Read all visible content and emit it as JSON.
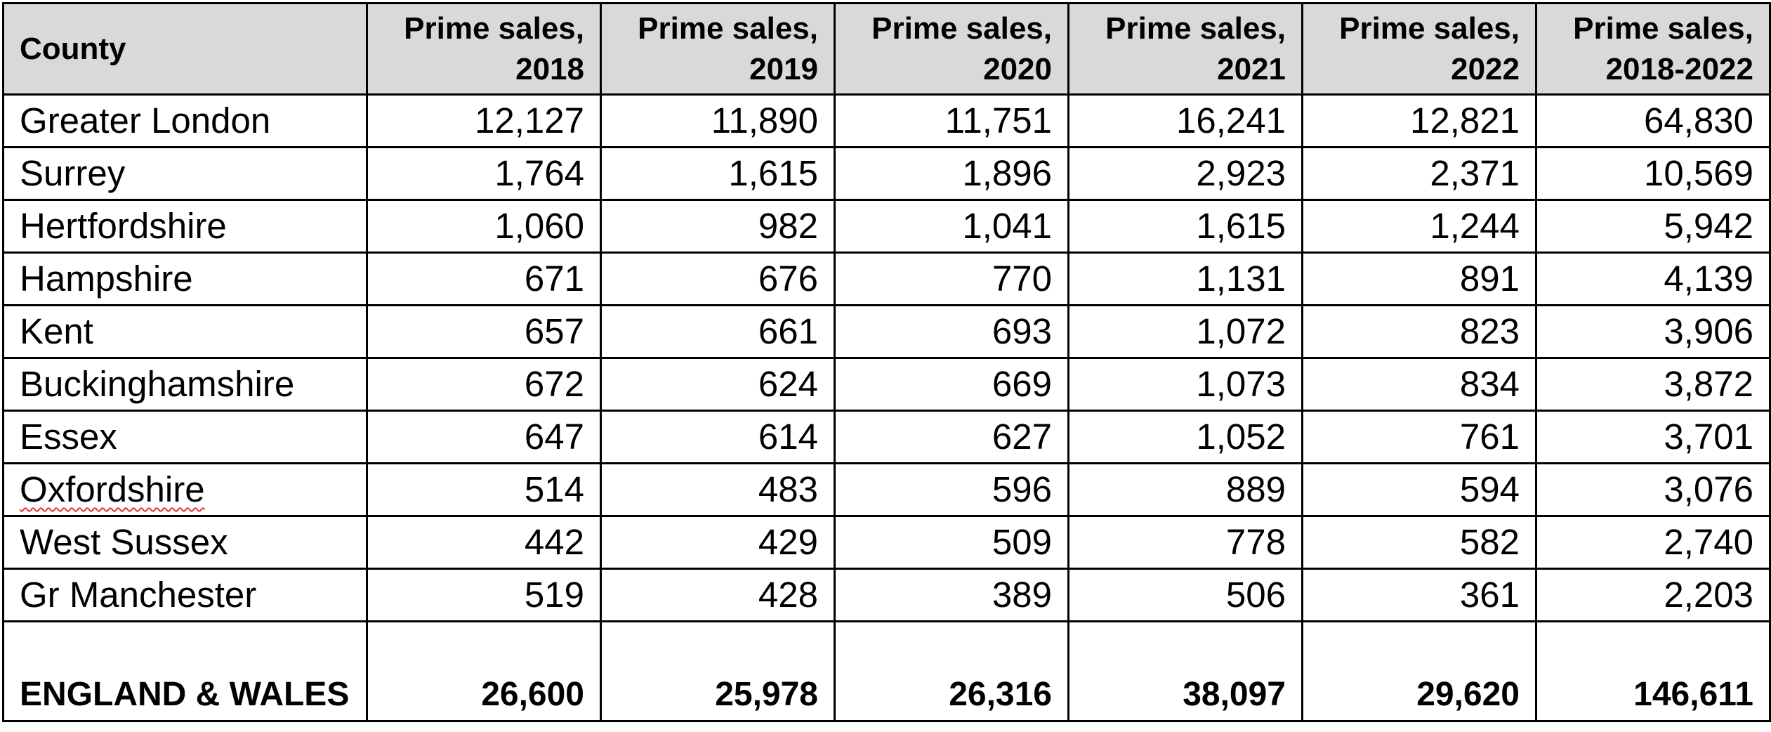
{
  "table": {
    "header": {
      "county": "County",
      "columns": [
        {
          "line1": "Prime sales,",
          "line2": "2018"
        },
        {
          "line1": "Prime sales,",
          "line2": "2019"
        },
        {
          "line1": "Prime sales,",
          "line2": "2020"
        },
        {
          "line1": "Prime sales,",
          "line2": "2021"
        },
        {
          "line1": "Prime sales,",
          "line2": "2022"
        },
        {
          "line1": "Prime sales,",
          "line2": "2018-2022"
        }
      ]
    },
    "rows": [
      {
        "county": "Greater London",
        "values": [
          "12,127",
          "11,890",
          "11,751",
          "16,241",
          "12,821",
          "64,830"
        ]
      },
      {
        "county": "Surrey",
        "values": [
          "1,764",
          "1,615",
          "1,896",
          "2,923",
          "2,371",
          "10,569"
        ]
      },
      {
        "county": "Hertfordshire",
        "values": [
          "1,060",
          "982",
          "1,041",
          "1,615",
          "1,244",
          "5,942"
        ]
      },
      {
        "county": "Hampshire",
        "values": [
          "671",
          "676",
          "770",
          "1,131",
          "891",
          "4,139"
        ]
      },
      {
        "county": "Kent",
        "values": [
          "657",
          "661",
          "693",
          "1,072",
          "823",
          "3,906"
        ]
      },
      {
        "county": "Buckinghamshire",
        "values": [
          "672",
          "624",
          "669",
          "1,073",
          "834",
          "3,872"
        ]
      },
      {
        "county": "Essex",
        "values": [
          "647",
          "614",
          "627",
          "1,052",
          "761",
          "3,701"
        ]
      },
      {
        "county": "Oxfordshire",
        "values": [
          "514",
          "483",
          "596",
          "889",
          "594",
          "3,076"
        ]
      },
      {
        "county": "West Sussex",
        "values": [
          "442",
          "429",
          "509",
          "778",
          "582",
          "2,740"
        ]
      },
      {
        "county": "Gr Manchester",
        "values": [
          "519",
          "428",
          "389",
          "506",
          "361",
          "2,203"
        ]
      }
    ],
    "total": {
      "county": "ENGLAND & WALES",
      "values": [
        "26,600",
        "25,978",
        "26,316",
        "38,097",
        "29,620",
        "146,611"
      ]
    }
  }
}
